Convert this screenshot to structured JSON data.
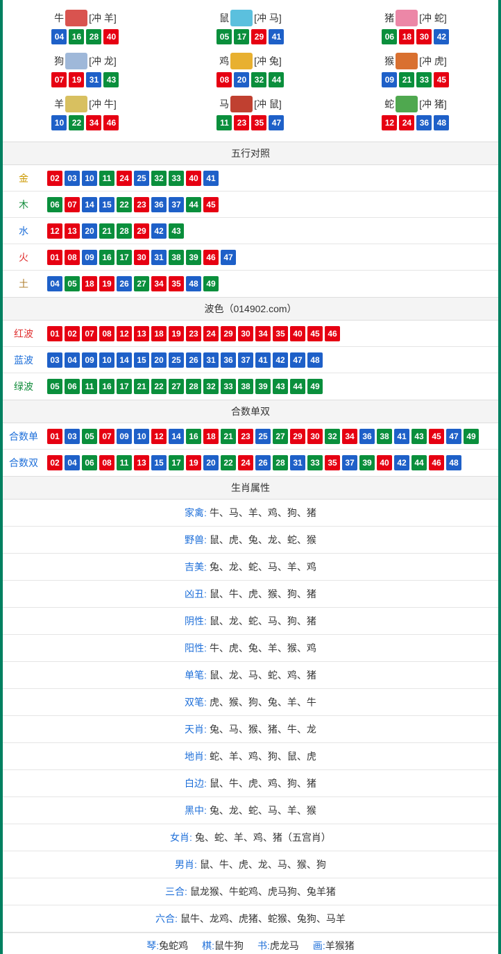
{
  "colors": {
    "red": "#e60012",
    "blue": "#1e60c8",
    "green": "#0a8f3c",
    "border": "#008060",
    "header_bg": "#f4f4f4",
    "label_gold": "#cc9900",
    "label_green": "#108b3a",
    "label_blue": "#1e6fd9",
    "label_red": "#e03030",
    "label_brown": "#b08030"
  },
  "zodiac_colors": {
    "牛": "#d9534f",
    "鼠": "#5bc0de",
    "猪": "#ec87a7",
    "狗": "#9fb8d9",
    "鸡": "#e8b030",
    "猴": "#d97030",
    "羊": "#d8c060",
    "马": "#c04030",
    "蛇": "#4fa84f"
  },
  "zodiac": [
    {
      "name": "牛",
      "clash": "[冲 羊]",
      "nums": [
        {
          "n": "04",
          "c": "blue"
        },
        {
          "n": "16",
          "c": "green"
        },
        {
          "n": "28",
          "c": "green"
        },
        {
          "n": "40",
          "c": "red"
        }
      ]
    },
    {
      "name": "鼠",
      "clash": "[冲 马]",
      "nums": [
        {
          "n": "05",
          "c": "green"
        },
        {
          "n": "17",
          "c": "green"
        },
        {
          "n": "29",
          "c": "red"
        },
        {
          "n": "41",
          "c": "blue"
        }
      ]
    },
    {
      "name": "猪",
      "clash": "[冲 蛇]",
      "nums": [
        {
          "n": "06",
          "c": "green"
        },
        {
          "n": "18",
          "c": "red"
        },
        {
          "n": "30",
          "c": "red"
        },
        {
          "n": "42",
          "c": "blue"
        }
      ]
    },
    {
      "name": "狗",
      "clash": "[冲 龙]",
      "nums": [
        {
          "n": "07",
          "c": "red"
        },
        {
          "n": "19",
          "c": "red"
        },
        {
          "n": "31",
          "c": "blue"
        },
        {
          "n": "43",
          "c": "green"
        }
      ]
    },
    {
      "name": "鸡",
      "clash": "[冲 兔]",
      "nums": [
        {
          "n": "08",
          "c": "red"
        },
        {
          "n": "20",
          "c": "blue"
        },
        {
          "n": "32",
          "c": "green"
        },
        {
          "n": "44",
          "c": "green"
        }
      ]
    },
    {
      "name": "猴",
      "clash": "[冲 虎]",
      "nums": [
        {
          "n": "09",
          "c": "blue"
        },
        {
          "n": "21",
          "c": "green"
        },
        {
          "n": "33",
          "c": "green"
        },
        {
          "n": "45",
          "c": "red"
        }
      ]
    },
    {
      "name": "羊",
      "clash": "[冲 牛]",
      "nums": [
        {
          "n": "10",
          "c": "blue"
        },
        {
          "n": "22",
          "c": "green"
        },
        {
          "n": "34",
          "c": "red"
        },
        {
          "n": "46",
          "c": "red"
        }
      ]
    },
    {
      "name": "马",
      "clash": "[冲 鼠]",
      "nums": [
        {
          "n": "11",
          "c": "green"
        },
        {
          "n": "23",
          "c": "red"
        },
        {
          "n": "35",
          "c": "red"
        },
        {
          "n": "47",
          "c": "blue"
        }
      ]
    },
    {
      "name": "蛇",
      "clash": "[冲 猪]",
      "nums": [
        {
          "n": "12",
          "c": "red"
        },
        {
          "n": "24",
          "c": "red"
        },
        {
          "n": "36",
          "c": "blue"
        },
        {
          "n": "48",
          "c": "blue"
        }
      ]
    }
  ],
  "wuxing_header": "五行对照",
  "wuxing": [
    {
      "label": "金",
      "label_color": "label_gold",
      "nums": [
        {
          "n": "02",
          "c": "red"
        },
        {
          "n": "03",
          "c": "blue"
        },
        {
          "n": "10",
          "c": "blue"
        },
        {
          "n": "11",
          "c": "green"
        },
        {
          "n": "24",
          "c": "red"
        },
        {
          "n": "25",
          "c": "blue"
        },
        {
          "n": "32",
          "c": "green"
        },
        {
          "n": "33",
          "c": "green"
        },
        {
          "n": "40",
          "c": "red"
        },
        {
          "n": "41",
          "c": "blue"
        }
      ]
    },
    {
      "label": "木",
      "label_color": "label_green",
      "nums": [
        {
          "n": "06",
          "c": "green"
        },
        {
          "n": "07",
          "c": "red"
        },
        {
          "n": "14",
          "c": "blue"
        },
        {
          "n": "15",
          "c": "blue"
        },
        {
          "n": "22",
          "c": "green"
        },
        {
          "n": "23",
          "c": "red"
        },
        {
          "n": "36",
          "c": "blue"
        },
        {
          "n": "37",
          "c": "blue"
        },
        {
          "n": "44",
          "c": "green"
        },
        {
          "n": "45",
          "c": "red"
        }
      ]
    },
    {
      "label": "水",
      "label_color": "label_blue",
      "nums": [
        {
          "n": "12",
          "c": "red"
        },
        {
          "n": "13",
          "c": "red"
        },
        {
          "n": "20",
          "c": "blue"
        },
        {
          "n": "21",
          "c": "green"
        },
        {
          "n": "28",
          "c": "green"
        },
        {
          "n": "29",
          "c": "red"
        },
        {
          "n": "42",
          "c": "blue"
        },
        {
          "n": "43",
          "c": "green"
        }
      ]
    },
    {
      "label": "火",
      "label_color": "label_red",
      "nums": [
        {
          "n": "01",
          "c": "red"
        },
        {
          "n": "08",
          "c": "red"
        },
        {
          "n": "09",
          "c": "blue"
        },
        {
          "n": "16",
          "c": "green"
        },
        {
          "n": "17",
          "c": "green"
        },
        {
          "n": "30",
          "c": "red"
        },
        {
          "n": "31",
          "c": "blue"
        },
        {
          "n": "38",
          "c": "green"
        },
        {
          "n": "39",
          "c": "green"
        },
        {
          "n": "46",
          "c": "red"
        },
        {
          "n": "47",
          "c": "blue"
        }
      ]
    },
    {
      "label": "土",
      "label_color": "label_brown",
      "nums": [
        {
          "n": "04",
          "c": "blue"
        },
        {
          "n": "05",
          "c": "green"
        },
        {
          "n": "18",
          "c": "red"
        },
        {
          "n": "19",
          "c": "red"
        },
        {
          "n": "26",
          "c": "blue"
        },
        {
          "n": "27",
          "c": "green"
        },
        {
          "n": "34",
          "c": "red"
        },
        {
          "n": "35",
          "c": "red"
        },
        {
          "n": "48",
          "c": "blue"
        },
        {
          "n": "49",
          "c": "green"
        }
      ]
    }
  ],
  "bose_header": "波色（014902.com）",
  "bose": [
    {
      "label": "红波",
      "label_color": "label_red",
      "nums": [
        {
          "n": "01",
          "c": "red"
        },
        {
          "n": "02",
          "c": "red"
        },
        {
          "n": "07",
          "c": "red"
        },
        {
          "n": "08",
          "c": "red"
        },
        {
          "n": "12",
          "c": "red"
        },
        {
          "n": "13",
          "c": "red"
        },
        {
          "n": "18",
          "c": "red"
        },
        {
          "n": "19",
          "c": "red"
        },
        {
          "n": "23",
          "c": "red"
        },
        {
          "n": "24",
          "c": "red"
        },
        {
          "n": "29",
          "c": "red"
        },
        {
          "n": "30",
          "c": "red"
        },
        {
          "n": "34",
          "c": "red"
        },
        {
          "n": "35",
          "c": "red"
        },
        {
          "n": "40",
          "c": "red"
        },
        {
          "n": "45",
          "c": "red"
        },
        {
          "n": "46",
          "c": "red"
        }
      ]
    },
    {
      "label": "蓝波",
      "label_color": "label_blue",
      "nums": [
        {
          "n": "03",
          "c": "blue"
        },
        {
          "n": "04",
          "c": "blue"
        },
        {
          "n": "09",
          "c": "blue"
        },
        {
          "n": "10",
          "c": "blue"
        },
        {
          "n": "14",
          "c": "blue"
        },
        {
          "n": "15",
          "c": "blue"
        },
        {
          "n": "20",
          "c": "blue"
        },
        {
          "n": "25",
          "c": "blue"
        },
        {
          "n": "26",
          "c": "blue"
        },
        {
          "n": "31",
          "c": "blue"
        },
        {
          "n": "36",
          "c": "blue"
        },
        {
          "n": "37",
          "c": "blue"
        },
        {
          "n": "41",
          "c": "blue"
        },
        {
          "n": "42",
          "c": "blue"
        },
        {
          "n": "47",
          "c": "blue"
        },
        {
          "n": "48",
          "c": "blue"
        }
      ]
    },
    {
      "label": "绿波",
      "label_color": "label_green",
      "nums": [
        {
          "n": "05",
          "c": "green"
        },
        {
          "n": "06",
          "c": "green"
        },
        {
          "n": "11",
          "c": "green"
        },
        {
          "n": "16",
          "c": "green"
        },
        {
          "n": "17",
          "c": "green"
        },
        {
          "n": "21",
          "c": "green"
        },
        {
          "n": "22",
          "c": "green"
        },
        {
          "n": "27",
          "c": "green"
        },
        {
          "n": "28",
          "c": "green"
        },
        {
          "n": "32",
          "c": "green"
        },
        {
          "n": "33",
          "c": "green"
        },
        {
          "n": "38",
          "c": "green"
        },
        {
          "n": "39",
          "c": "green"
        },
        {
          "n": "43",
          "c": "green"
        },
        {
          "n": "44",
          "c": "green"
        },
        {
          "n": "49",
          "c": "green"
        }
      ]
    }
  ],
  "heshu_header": "合数单双",
  "heshu": [
    {
      "label": "合数单",
      "label_color": "label_blue",
      "nums": [
        {
          "n": "01",
          "c": "red"
        },
        {
          "n": "03",
          "c": "blue"
        },
        {
          "n": "05",
          "c": "green"
        },
        {
          "n": "07",
          "c": "red"
        },
        {
          "n": "09",
          "c": "blue"
        },
        {
          "n": "10",
          "c": "blue"
        },
        {
          "n": "12",
          "c": "red"
        },
        {
          "n": "14",
          "c": "blue"
        },
        {
          "n": "16",
          "c": "green"
        },
        {
          "n": "18",
          "c": "red"
        },
        {
          "n": "21",
          "c": "green"
        },
        {
          "n": "23",
          "c": "red"
        },
        {
          "n": "25",
          "c": "blue"
        },
        {
          "n": "27",
          "c": "green"
        },
        {
          "n": "29",
          "c": "red"
        },
        {
          "n": "30",
          "c": "red"
        },
        {
          "n": "32",
          "c": "green"
        },
        {
          "n": "34",
          "c": "red"
        },
        {
          "n": "36",
          "c": "blue"
        },
        {
          "n": "38",
          "c": "green"
        },
        {
          "n": "41",
          "c": "blue"
        },
        {
          "n": "43",
          "c": "green"
        },
        {
          "n": "45",
          "c": "red"
        },
        {
          "n": "47",
          "c": "blue"
        },
        {
          "n": "49",
          "c": "green"
        }
      ]
    },
    {
      "label": "合数双",
      "label_color": "label_blue",
      "nums": [
        {
          "n": "02",
          "c": "red"
        },
        {
          "n": "04",
          "c": "blue"
        },
        {
          "n": "06",
          "c": "green"
        },
        {
          "n": "08",
          "c": "red"
        },
        {
          "n": "11",
          "c": "green"
        },
        {
          "n": "13",
          "c": "red"
        },
        {
          "n": "15",
          "c": "blue"
        },
        {
          "n": "17",
          "c": "green"
        },
        {
          "n": "19",
          "c": "red"
        },
        {
          "n": "20",
          "c": "blue"
        },
        {
          "n": "22",
          "c": "green"
        },
        {
          "n": "24",
          "c": "red"
        },
        {
          "n": "26",
          "c": "blue"
        },
        {
          "n": "28",
          "c": "green"
        },
        {
          "n": "31",
          "c": "blue"
        },
        {
          "n": "33",
          "c": "green"
        },
        {
          "n": "35",
          "c": "red"
        },
        {
          "n": "37",
          "c": "blue"
        },
        {
          "n": "39",
          "c": "green"
        },
        {
          "n": "40",
          "c": "red"
        },
        {
          "n": "42",
          "c": "blue"
        },
        {
          "n": "44",
          "c": "green"
        },
        {
          "n": "46",
          "c": "red"
        },
        {
          "n": "48",
          "c": "blue"
        }
      ]
    }
  ],
  "shengxiao_header": "生肖属性",
  "attributes": [
    {
      "label": "家禽:",
      "label_color": "label_blue",
      "value": "牛、马、羊、鸡、狗、猪"
    },
    {
      "label": "野兽:",
      "label_color": "label_blue",
      "value": "鼠、虎、兔、龙、蛇、猴"
    },
    {
      "label": "吉美:",
      "label_color": "label_blue",
      "value": "兔、龙、蛇、马、羊、鸡"
    },
    {
      "label": "凶丑:",
      "label_color": "label_blue",
      "value": "鼠、牛、虎、猴、狗、猪"
    },
    {
      "label": "阴性:",
      "label_color": "label_blue",
      "value": "鼠、龙、蛇、马、狗、猪"
    },
    {
      "label": "阳性:",
      "label_color": "label_blue",
      "value": "牛、虎、兔、羊、猴、鸡"
    },
    {
      "label": "单笔:",
      "label_color": "label_blue",
      "value": "鼠、龙、马、蛇、鸡、猪"
    },
    {
      "label": "双笔:",
      "label_color": "label_blue",
      "value": "虎、猴、狗、兔、羊、牛"
    },
    {
      "label": "天肖:",
      "label_color": "label_blue",
      "value": "兔、马、猴、猪、牛、龙"
    },
    {
      "label": "地肖:",
      "label_color": "label_blue",
      "value": "蛇、羊、鸡、狗、鼠、虎"
    },
    {
      "label": "白边:",
      "label_color": "label_blue",
      "value": "鼠、牛、虎、鸡、狗、猪"
    },
    {
      "label": "黑中:",
      "label_color": "label_blue",
      "value": "兔、龙、蛇、马、羊、猴"
    },
    {
      "label": "女肖:",
      "label_color": "label_blue",
      "value": "兔、蛇、羊、鸡、猪（五宫肖）"
    },
    {
      "label": "男肖:",
      "label_color": "label_blue",
      "value": "鼠、牛、虎、龙、马、猴、狗"
    },
    {
      "label": "三合:",
      "label_color": "label_blue",
      "value": "鼠龙猴、牛蛇鸡、虎马狗、兔羊猪"
    },
    {
      "label": "六合:",
      "label_color": "label_blue",
      "value": "鼠牛、龙鸡、虎猪、蛇猴、兔狗、马羊"
    }
  ],
  "four": [
    {
      "label": "琴:",
      "label_color": "label_blue",
      "value": "兔蛇鸡"
    },
    {
      "label": "棋:",
      "label_color": "label_blue",
      "value": "鼠牛狗"
    },
    {
      "label": "书:",
      "label_color": "label_blue",
      "value": "虎龙马"
    },
    {
      "label": "画:",
      "label_color": "label_blue",
      "value": "羊猴猪"
    }
  ]
}
